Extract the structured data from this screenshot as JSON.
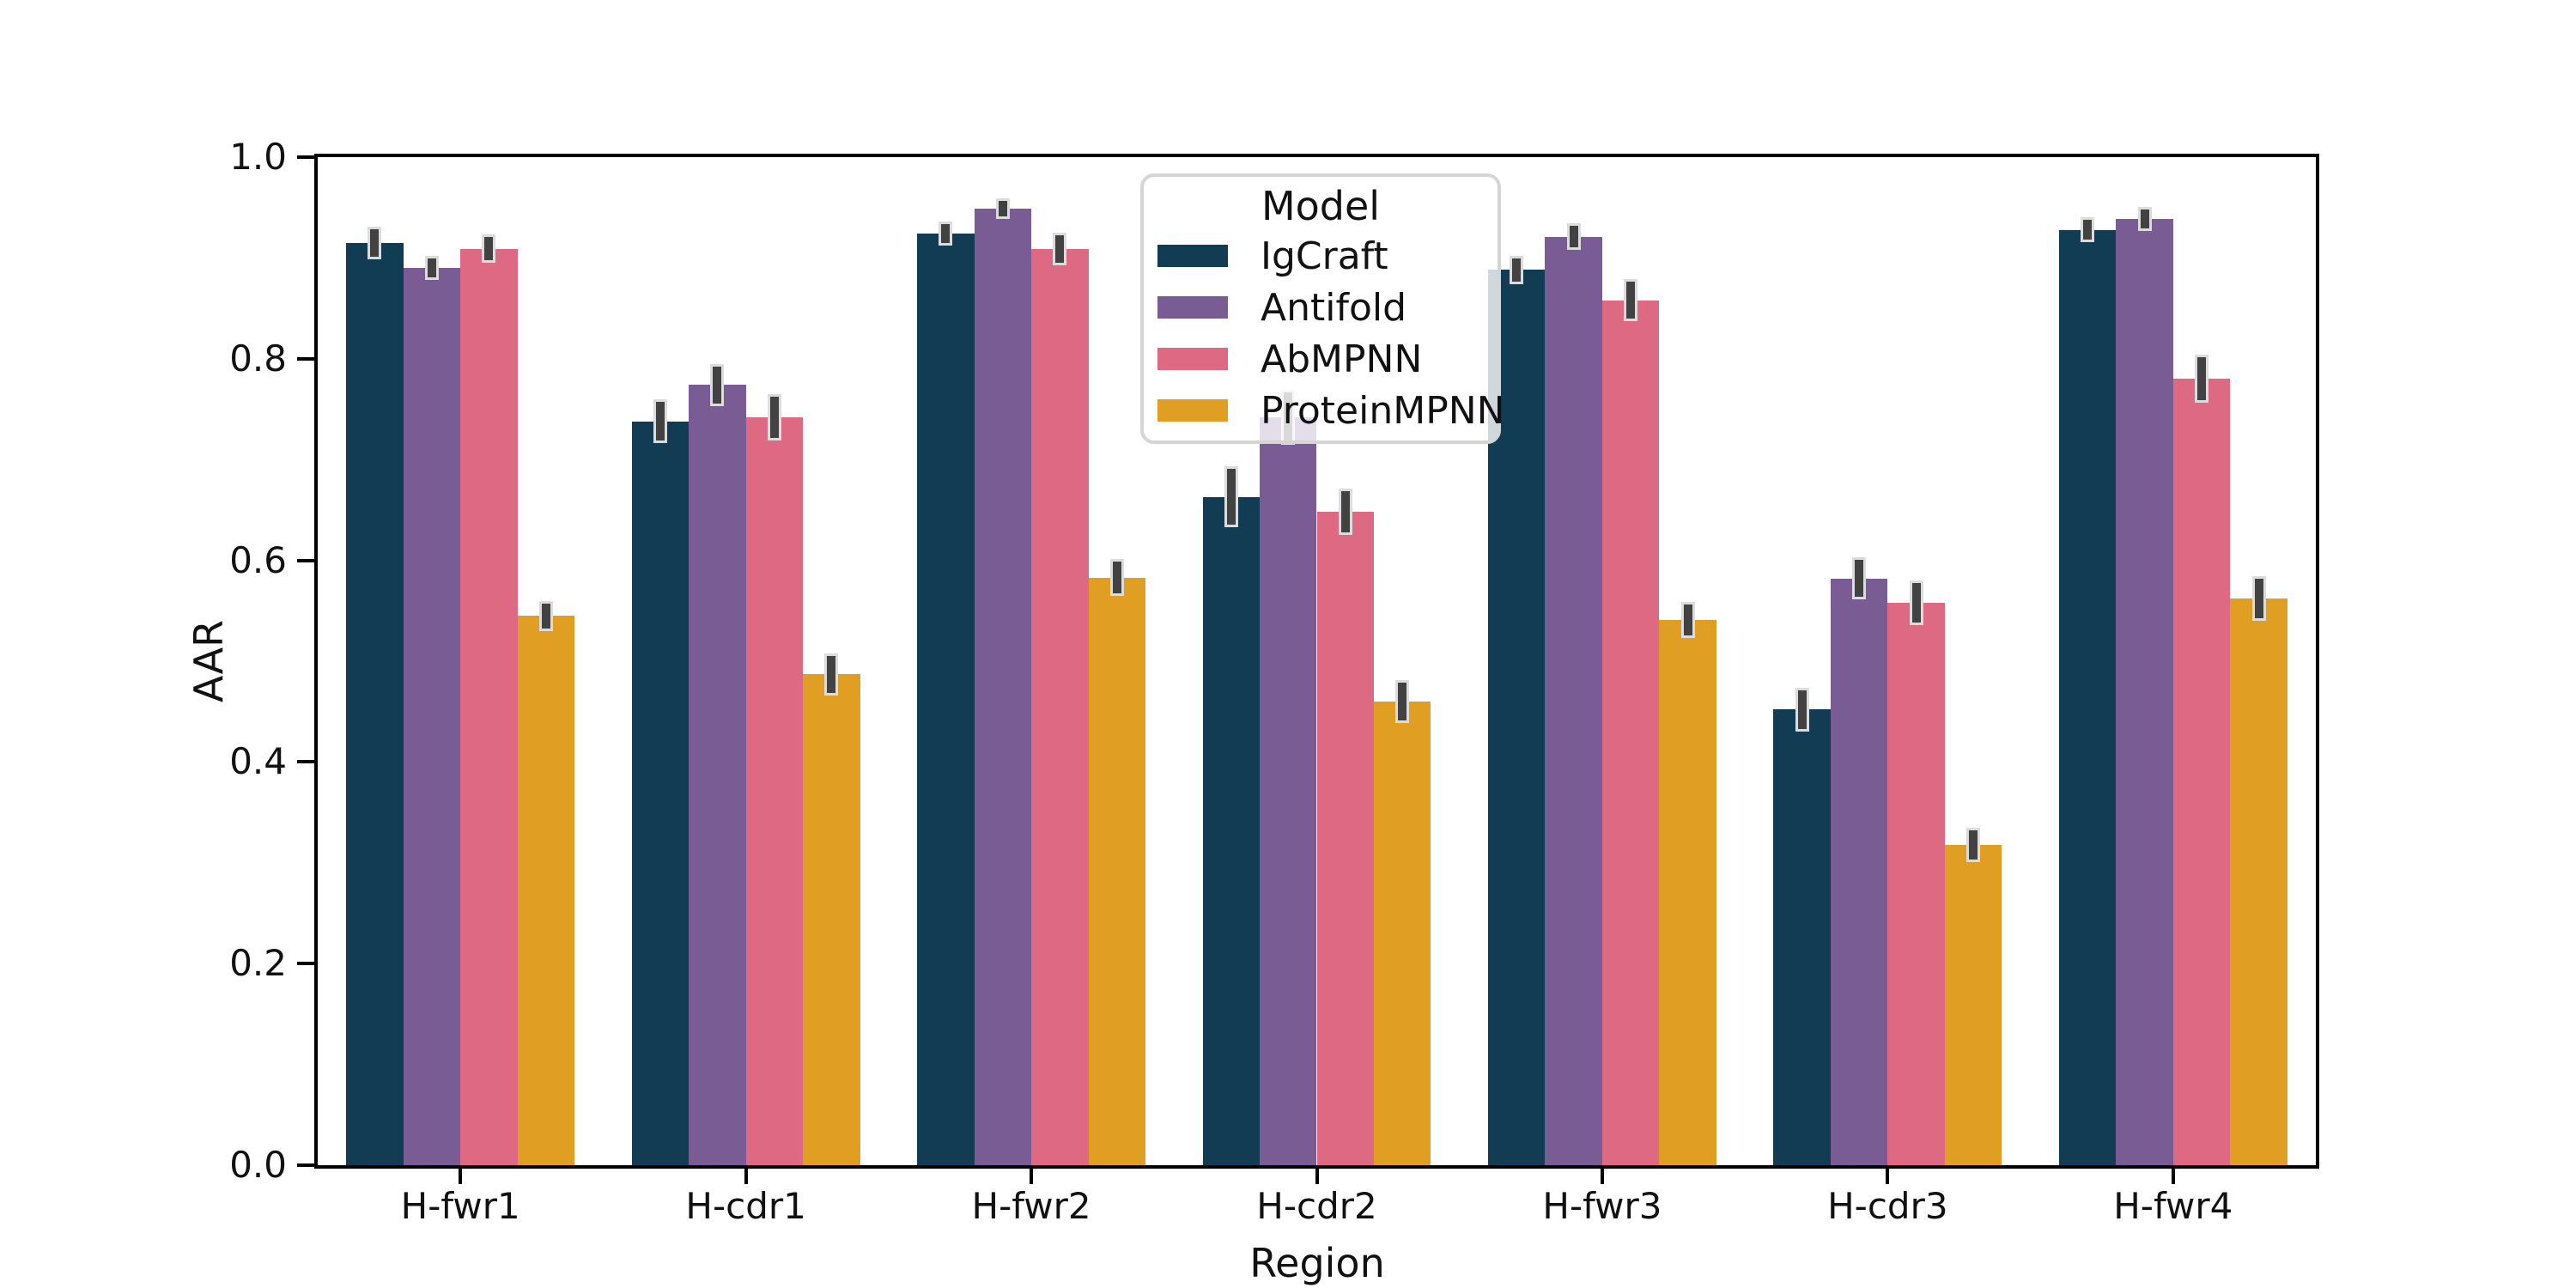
{
  "figure": {
    "background": "#ffffff",
    "text_color": "#111111"
  },
  "chart_data": {
    "type": "bar",
    "title": "",
    "xlabel": "Region",
    "ylabel": "AAR",
    "ylim": [
      0.0,
      1.0
    ],
    "yticks": [
      0.0,
      0.2,
      0.4,
      0.6,
      0.8,
      1.0
    ],
    "ytick_labels": [
      "0.0",
      "0.2",
      "0.4",
      "0.6",
      "0.8",
      "1.0"
    ],
    "grid": false,
    "categories": [
      "H-fwr1",
      "H-cdr1",
      "H-fwr2",
      "H-cdr2",
      "H-fwr3",
      "H-cdr3",
      "H-fwr4"
    ],
    "legend": {
      "title": "Model",
      "position": "upper center",
      "entries": [
        "IgCraft",
        "Antifold",
        "AbMPNN",
        "ProteinMPNN"
      ]
    },
    "error_bar_color": "#424242",
    "series": [
      {
        "name": "IgCraft",
        "color": "#113c53",
        "values": [
          0.915,
          0.738,
          0.924,
          0.663,
          0.888,
          0.452,
          0.928
        ],
        "errors": [
          0.016,
          0.022,
          0.012,
          0.03,
          0.014,
          0.022,
          0.012
        ]
      },
      {
        "name": "Antifold",
        "color": "#7a5c94",
        "values": [
          0.89,
          0.774,
          0.949,
          0.742,
          0.921,
          0.582,
          0.939
        ],
        "errors": [
          0.012,
          0.021,
          0.01,
          0.027,
          0.013,
          0.021,
          0.012
        ]
      },
      {
        "name": "AbMPNN",
        "color": "#dd6a82",
        "values": [
          0.909,
          0.742,
          0.909,
          0.648,
          0.858,
          0.558,
          0.78
        ],
        "errors": [
          0.014,
          0.023,
          0.016,
          0.023,
          0.021,
          0.022,
          0.024
        ]
      },
      {
        "name": "ProteinMPNN",
        "color": "#e09f22",
        "values": [
          0.545,
          0.487,
          0.583,
          0.46,
          0.541,
          0.318,
          0.562
        ],
        "errors": [
          0.015,
          0.021,
          0.018,
          0.021,
          0.018,
          0.017,
          0.022
        ]
      }
    ]
  }
}
